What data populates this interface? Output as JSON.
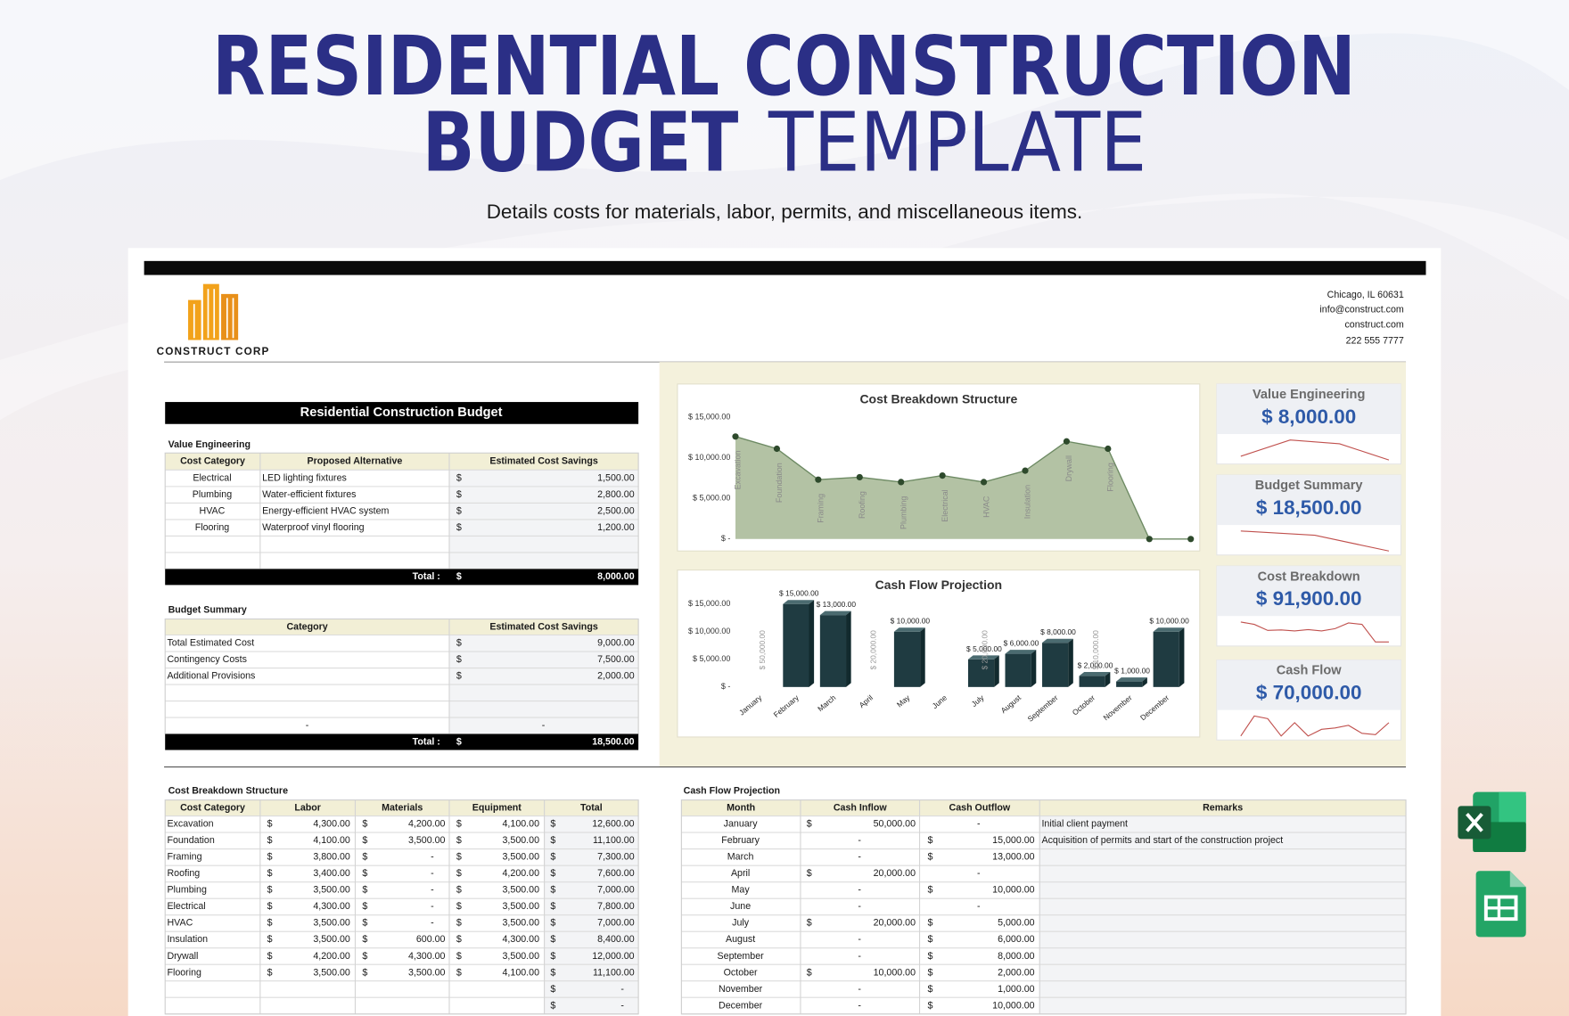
{
  "header": {
    "title_line1": "RESIDENTIAL CONSTRUCTION",
    "title_bold": "BUDGET",
    "title_light": "TEMPLATE",
    "subtitle": "Details costs for materials, labor, permits, and miscellaneous items."
  },
  "company": {
    "name": "CONSTRUCT CORP",
    "contact": [
      "Chicago, IL 60631",
      "info@construct.com",
      "construct.com",
      "222 555 7777"
    ]
  },
  "budget": {
    "title": "Residential Construction Budget",
    "value_engineering": {
      "label": "Value Engineering",
      "columns": [
        "Cost Category",
        "Proposed Alternative",
        "Estimated Cost Savings"
      ],
      "rows": [
        [
          "Electrical",
          "LED lighting fixtures",
          "$",
          "1,500.00"
        ],
        [
          "Plumbing",
          "Water-efficient fixtures",
          "$",
          "2,800.00"
        ],
        [
          "HVAC",
          "Energy-efficient HVAC system",
          "$",
          "2,500.00"
        ],
        [
          "Flooring",
          "Waterproof vinyl flooring",
          "$",
          "1,200.00"
        ],
        [
          null,
          null,
          null,
          null
        ],
        [
          null,
          null,
          null,
          null
        ]
      ],
      "total": [
        "Total :",
        "$",
        "8,000.00"
      ]
    },
    "budget_summary": {
      "label": "Budget Summary",
      "columns": [
        "Category",
        "Estimated Cost Savings"
      ],
      "rows": [
        [
          "Total Estimated Cost",
          "$",
          "9,000.00"
        ],
        [
          "Contingency Costs",
          "$",
          "7,500.00"
        ],
        [
          "Additional Provisions",
          "$",
          "2,000.00"
        ],
        [
          null,
          null,
          null
        ],
        [
          null,
          null,
          null
        ],
        [
          "-",
          null,
          "-"
        ]
      ],
      "total": [
        "Total :",
        "$",
        "18,500.00"
      ]
    }
  },
  "kpis": [
    {
      "label": "Value Engineering",
      "value": "$ 8,000.00",
      "trend": [
        1500,
        2800,
        2500,
        1200
      ]
    },
    {
      "label": "Budget Summary",
      "value": "$ 18,500.00",
      "trend": [
        9000,
        7500,
        2000
      ]
    },
    {
      "label": "Cost Breakdown",
      "value": "$ 91,900.00",
      "trend": [
        12600,
        11100,
        7300,
        7600,
        7000,
        7800,
        7000,
        8400,
        12000,
        11100,
        0,
        0
      ]
    },
    {
      "label": "Cash Flow",
      "value": "$ 70,000.00",
      "trend": [
        0,
        15000,
        13000,
        0,
        10000,
        0,
        5000,
        6000,
        8000,
        2000,
        1000,
        10000
      ]
    }
  ],
  "cost_breakdown": {
    "label": "Cost Breakdown Structure",
    "columns": [
      "Cost Category",
      "Labor",
      "Materials",
      "Equipment",
      "Total"
    ],
    "rows": [
      [
        "Excavation",
        "$",
        "4,300.00",
        "$",
        "4,200.00",
        "$",
        "4,100.00",
        "$",
        "12,600.00"
      ],
      [
        "Foundation",
        "$",
        "4,100.00",
        "$",
        "3,500.00",
        "$",
        "3,500.00",
        "$",
        "11,100.00"
      ],
      [
        "Framing",
        "$",
        "3,800.00",
        "$",
        "-",
        "$",
        "3,500.00",
        "$",
        "7,300.00"
      ],
      [
        "Roofing",
        "$",
        "3,400.00",
        "$",
        "-",
        "$",
        "4,200.00",
        "$",
        "7,600.00"
      ],
      [
        "Plumbing",
        "$",
        "3,500.00",
        "$",
        "-",
        "$",
        "3,500.00",
        "$",
        "7,000.00"
      ],
      [
        "Electrical",
        "$",
        "4,300.00",
        "$",
        "-",
        "$",
        "3,500.00",
        "$",
        "7,800.00"
      ],
      [
        "HVAC",
        "$",
        "3,500.00",
        "$",
        "-",
        "$",
        "3,500.00",
        "$",
        "7,000.00"
      ],
      [
        "Insulation",
        "$",
        "3,500.00",
        "$",
        "600.00",
        "$",
        "4,300.00",
        "$",
        "8,400.00"
      ],
      [
        "Drywall",
        "$",
        "4,200.00",
        "$",
        "4,300.00",
        "$",
        "3,500.00",
        "$",
        "12,000.00"
      ],
      [
        "Flooring",
        "$",
        "3,500.00",
        "$",
        "3,500.00",
        "$",
        "4,100.00",
        "$",
        "11,100.00"
      ],
      [
        null,
        null,
        null,
        null,
        null,
        null,
        null,
        "$",
        "-"
      ],
      [
        null,
        null,
        null,
        null,
        null,
        null,
        null,
        "$",
        "-"
      ]
    ]
  },
  "cash_flow": {
    "label": "Cash Flow Projection",
    "columns": [
      "Month",
      "Cash Inflow",
      "Cash Outflow",
      "Remarks"
    ],
    "rows": [
      [
        "January",
        "$",
        "50,000.00",
        null,
        "-",
        "Initial client payment"
      ],
      [
        "February",
        null,
        "-",
        "$",
        "15,000.00",
        "Acquisition of permits and start of the construction project"
      ],
      [
        "March",
        null,
        "-",
        "$",
        "13,000.00",
        null
      ],
      [
        "April",
        "$",
        "20,000.00",
        null,
        "-",
        null
      ],
      [
        "May",
        null,
        "-",
        "$",
        "10,000.00",
        null
      ],
      [
        "June",
        null,
        "-",
        null,
        "-",
        null
      ],
      [
        "July",
        "$",
        "20,000.00",
        "$",
        "5,000.00",
        null
      ],
      [
        "August",
        null,
        "-",
        "$",
        "6,000.00",
        null
      ],
      [
        "September",
        null,
        "-",
        "$",
        "8,000.00",
        null
      ],
      [
        "October",
        "$",
        "10,000.00",
        "$",
        "2,000.00",
        null
      ],
      [
        "November",
        null,
        "-",
        "$",
        "1,000.00",
        null
      ],
      [
        "December",
        null,
        "-",
        "$",
        "10,000.00",
        null
      ]
    ]
  },
  "chart_data": [
    {
      "type": "area",
      "title": "Cost Breakdown Structure",
      "color": "#b3c2a4",
      "categories": [
        "Excavation",
        "Foundation",
        "Framing",
        "Roofing",
        "Plumbing",
        "Electrical",
        "HVAC",
        "Insulation",
        "Drywall",
        "Flooring",
        null,
        null
      ],
      "values": [
        12600,
        11100,
        7300,
        7600,
        7000,
        7800,
        7000,
        8400,
        12000,
        11100,
        0,
        0
      ],
      "ylim": [
        0,
        15000
      ],
      "yticks": [
        {
          "value": 0,
          "label": "$ -"
        },
        {
          "value": 5000,
          "label": "$ 5,000.00"
        },
        {
          "value": 10000,
          "label": "$ 10,000.00"
        },
        {
          "value": 15000,
          "label": "$ 15,000.00"
        }
      ]
    },
    {
      "type": "bar",
      "title": "Cash Flow Projection",
      "categories": [
        "January",
        "February",
        "March",
        "April",
        "May",
        "June",
        "July",
        "August",
        "September",
        "October",
        "November",
        "December"
      ],
      "series": [
        {
          "color": "#1f3b41",
          "values": [
            null,
            15000,
            13000,
            null,
            10000,
            null,
            5000,
            6000,
            8000,
            2000,
            1000,
            10000
          ],
          "value_labels": [
            null,
            "$ 15,000.00",
            "$ 13,000.00",
            null,
            "$ 10,000.00",
            null,
            "$ 5,000.00",
            "$ 6,000.00",
            "$ 8,000.00",
            "$ 2,000.00",
            "$ 1,000.00",
            "$ 10,000.00"
          ]
        },
        {
          "color": "transparent",
          "vertical_labels": true,
          "values": [
            50000,
            null,
            null,
            20000,
            null,
            null,
            20000,
            null,
            null,
            10000,
            null,
            null
          ],
          "value_labels": [
            "$ 50,000.00",
            null,
            null,
            "$ 20,000.00",
            null,
            null,
            "$ 20,000.00",
            null,
            null,
            "$ 10,000.00",
            null,
            null
          ]
        }
      ],
      "ylim": [
        0,
        15000
      ],
      "yticks": [
        {
          "value": 0,
          "label": "$ -"
        },
        {
          "value": 5000,
          "label": "$ 5,000.00"
        },
        {
          "value": 10000,
          "label": "$ 10,000.00"
        },
        {
          "value": 15000,
          "label": "$ 15,000.00"
        }
      ]
    }
  ]
}
